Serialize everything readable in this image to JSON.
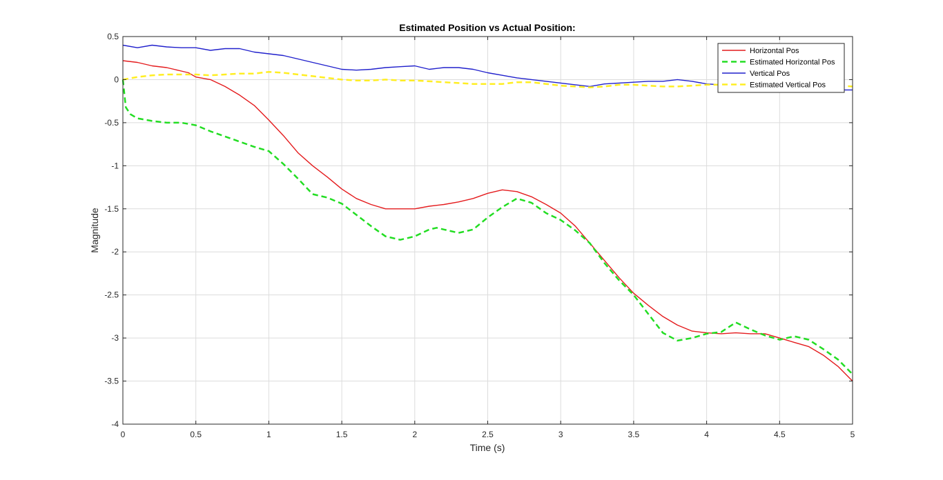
{
  "chart_data": {
    "type": "line",
    "title": "Estimated Position vs Actual Position:",
    "xlabel": "Time (s)",
    "ylabel": "Magnitude",
    "xlim": [
      0,
      5
    ],
    "ylim": [
      -4,
      0.5
    ],
    "xticks": [
      0,
      0.5,
      1,
      1.5,
      2,
      2.5,
      3,
      3.5,
      4,
      4.5,
      5
    ],
    "xtick_labels": [
      "0",
      "0.5",
      "1",
      "1.5",
      "2",
      "2.5",
      "3",
      "3.5",
      "4",
      "4.5",
      "5"
    ],
    "yticks": [
      0.5,
      0,
      -0.5,
      -1,
      -1.5,
      -2,
      -2.5,
      -3,
      -3.5,
      -4
    ],
    "ytick_labels": [
      "0.5",
      "0",
      "-0.5",
      "-1",
      "-1.5",
      "-2",
      "-2.5",
      "-3",
      "-3.5",
      "-4"
    ],
    "grid": true,
    "legend_position": "top-right",
    "series": [
      {
        "name": "Horizontal Pos",
        "color": "#e41a1c",
        "style": "solid",
        "x": [
          0,
          0.1,
          0.2,
          0.3,
          0.4,
          0.45,
          0.5,
          0.6,
          0.7,
          0.8,
          0.9,
          1.0,
          1.1,
          1.2,
          1.3,
          1.4,
          1.5,
          1.6,
          1.7,
          1.8,
          1.9,
          2.0,
          2.1,
          2.2,
          2.3,
          2.4,
          2.5,
          2.6,
          2.7,
          2.8,
          2.9,
          3.0,
          3.1,
          3.2,
          3.3,
          3.4,
          3.5,
          3.6,
          3.7,
          3.8,
          3.9,
          4.0,
          4.1,
          4.2,
          4.3,
          4.4,
          4.5,
          4.6,
          4.7,
          4.8,
          4.9,
          5.0
        ],
        "y": [
          0.22,
          0.2,
          0.16,
          0.14,
          0.1,
          0.08,
          0.03,
          0.0,
          -0.08,
          -0.18,
          -0.3,
          -0.47,
          -0.65,
          -0.85,
          -1.0,
          -1.13,
          -1.27,
          -1.38,
          -1.45,
          -1.5,
          -1.5,
          -1.5,
          -1.47,
          -1.45,
          -1.42,
          -1.38,
          -1.32,
          -1.28,
          -1.3,
          -1.36,
          -1.45,
          -1.55,
          -1.7,
          -1.9,
          -2.1,
          -2.3,
          -2.48,
          -2.62,
          -2.75,
          -2.85,
          -2.92,
          -2.94,
          -2.95,
          -2.94,
          -2.95,
          -2.95,
          -3.0,
          -3.05,
          -3.1,
          -3.2,
          -3.33,
          -3.5
        ]
      },
      {
        "name": "Estimated Horizontal Pos",
        "color": "#22dd22",
        "style": "dashed",
        "x": [
          0,
          0.02,
          0.05,
          0.1,
          0.2,
          0.3,
          0.4,
          0.5,
          0.6,
          0.7,
          0.8,
          0.9,
          1.0,
          1.1,
          1.2,
          1.3,
          1.4,
          1.5,
          1.6,
          1.7,
          1.8,
          1.9,
          2.0,
          2.1,
          2.15,
          2.2,
          2.3,
          2.4,
          2.5,
          2.6,
          2.7,
          2.8,
          2.9,
          3.0,
          3.1,
          3.2,
          3.3,
          3.4,
          3.5,
          3.6,
          3.7,
          3.8,
          3.9,
          4.0,
          4.1,
          4.2,
          4.3,
          4.4,
          4.5,
          4.6,
          4.7,
          4.8,
          4.9,
          5.0
        ],
        "y": [
          0,
          -0.32,
          -0.4,
          -0.45,
          -0.48,
          -0.5,
          -0.5,
          -0.53,
          -0.6,
          -0.66,
          -0.72,
          -0.78,
          -0.83,
          -0.98,
          -1.15,
          -1.33,
          -1.37,
          -1.44,
          -1.57,
          -1.7,
          -1.82,
          -1.86,
          -1.82,
          -1.74,
          -1.72,
          -1.74,
          -1.78,
          -1.74,
          -1.6,
          -1.48,
          -1.38,
          -1.43,
          -1.55,
          -1.63,
          -1.75,
          -1.9,
          -2.13,
          -2.33,
          -2.5,
          -2.72,
          -2.94,
          -3.03,
          -3.0,
          -2.95,
          -2.93,
          -2.82,
          -2.9,
          -2.97,
          -3.02,
          -2.98,
          -3.02,
          -3.13,
          -3.25,
          -3.42
        ]
      },
      {
        "name": "Vertical Pos",
        "color": "#1f1fcc",
        "style": "solid",
        "x": [
          0,
          0.1,
          0.2,
          0.3,
          0.4,
          0.5,
          0.6,
          0.7,
          0.8,
          0.9,
          1.0,
          1.1,
          1.2,
          1.3,
          1.4,
          1.5,
          1.6,
          1.7,
          1.8,
          1.9,
          2.0,
          2.1,
          2.2,
          2.3,
          2.4,
          2.5,
          2.6,
          2.7,
          2.8,
          2.9,
          3.0,
          3.1,
          3.2,
          3.3,
          3.4,
          3.5,
          3.6,
          3.7,
          3.8,
          3.9,
          4.0,
          4.1,
          4.2,
          4.3,
          4.4,
          4.5,
          4.6,
          4.7,
          4.8,
          4.9,
          5.0
        ],
        "y": [
          0.4,
          0.37,
          0.4,
          0.38,
          0.37,
          0.37,
          0.34,
          0.36,
          0.36,
          0.32,
          0.3,
          0.28,
          0.24,
          0.2,
          0.16,
          0.12,
          0.11,
          0.12,
          0.14,
          0.15,
          0.16,
          0.12,
          0.14,
          0.14,
          0.12,
          0.08,
          0.05,
          0.02,
          0.0,
          -0.02,
          -0.04,
          -0.06,
          -0.08,
          -0.05,
          -0.04,
          -0.03,
          -0.02,
          -0.02,
          0.0,
          -0.02,
          -0.05,
          -0.06,
          -0.06,
          -0.08,
          -0.08,
          -0.09,
          -0.1,
          -0.1,
          -0.11,
          -0.12,
          -0.12
        ]
      },
      {
        "name": "Estimated Vertical Pos",
        "color": "#ffee22",
        "style": "dashed",
        "x": [
          0,
          0.1,
          0.2,
          0.3,
          0.4,
          0.5,
          0.6,
          0.7,
          0.8,
          0.9,
          1.0,
          1.1,
          1.2,
          1.3,
          1.4,
          1.5,
          1.6,
          1.7,
          1.8,
          1.9,
          2.0,
          2.1,
          2.2,
          2.3,
          2.4,
          2.5,
          2.6,
          2.7,
          2.8,
          2.9,
          3.0,
          3.1,
          3.2,
          3.3,
          3.4,
          3.5,
          3.6,
          3.7,
          3.8,
          3.9,
          4.0,
          4.1,
          4.2,
          4.3,
          4.4,
          4.5,
          4.6,
          4.7,
          4.8,
          4.9,
          5.0
        ],
        "y": [
          0.0,
          0.03,
          0.05,
          0.06,
          0.06,
          0.06,
          0.05,
          0.06,
          0.07,
          0.07,
          0.09,
          0.08,
          0.06,
          0.04,
          0.02,
          0.0,
          -0.01,
          -0.01,
          0.0,
          -0.01,
          -0.01,
          -0.02,
          -0.03,
          -0.04,
          -0.05,
          -0.05,
          -0.05,
          -0.03,
          -0.03,
          -0.05,
          -0.07,
          -0.08,
          -0.09,
          -0.08,
          -0.06,
          -0.06,
          -0.07,
          -0.08,
          -0.08,
          -0.07,
          -0.06,
          -0.06,
          -0.06,
          -0.05,
          -0.05,
          -0.05,
          -0.05,
          -0.06,
          -0.06,
          -0.07,
          -0.08
        ]
      }
    ]
  }
}
